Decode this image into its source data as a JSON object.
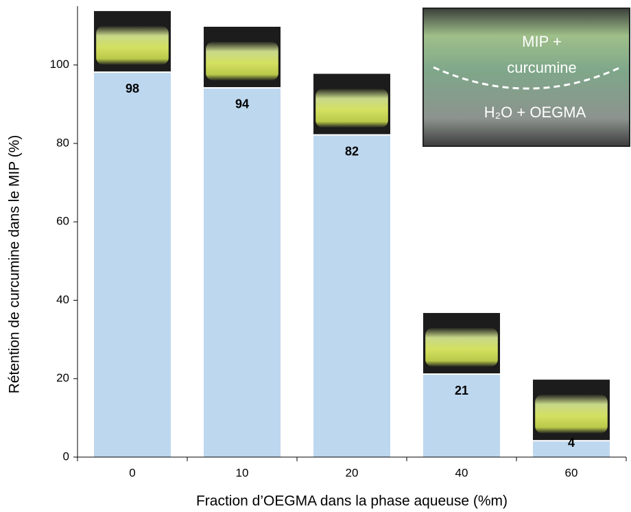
{
  "chart_data": {
    "type": "bar",
    "x_label": "Fraction d’OEGMA dans la phase aqueuse (%m)",
    "y_label": "Rétention de curcumine dans le MIP (%)",
    "categories": [
      "0",
      "10",
      "20",
      "40",
      "60"
    ],
    "values": [
      98,
      94,
      82,
      21,
      4
    ],
    "color": "#bdd7ee",
    "ylim": [
      0,
      115
    ],
    "yticks": [
      0,
      20,
      40,
      60,
      80,
      100
    ],
    "inset_labels": [
      "MIP +",
      "curcumine",
      "H₂O + OEGMA"
    ]
  }
}
